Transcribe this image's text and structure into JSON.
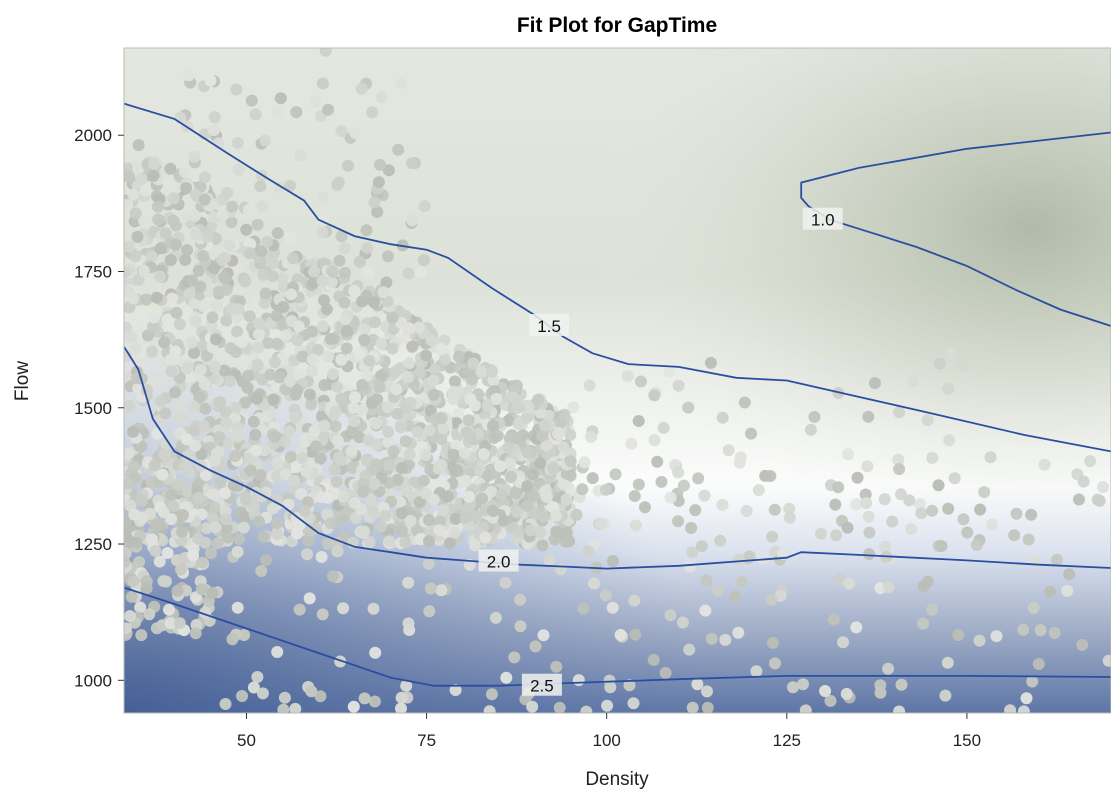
{
  "chart_data": {
    "type": "contour",
    "title": "Fit Plot for GapTime",
    "xlabel": "Density",
    "ylabel": "Flow",
    "xlim": [
      33,
      170
    ],
    "ylim": [
      940,
      2160
    ],
    "x_ticks": [
      50,
      75,
      100,
      125,
      150
    ],
    "y_ticks": [
      1000,
      1250,
      1500,
      1750,
      2000
    ],
    "x_tick_labels": [
      "50",
      "75",
      "100",
      "125",
      "150"
    ],
    "y_tick_labels": [
      "1000",
      "1250",
      "1500",
      "1750",
      "2000"
    ],
    "grid": false,
    "colors": {
      "contour_line": "#2a4ea0",
      "surface_low_gaptime": "#a9b5a3",
      "surface_mid_gaptime": "#fbfcfc",
      "surface_high_gaptime": "#4e6a9c",
      "marker_light": "#e4e6e2",
      "marker_dark": "#b8bcb4"
    },
    "contours": [
      {
        "level": 1.0,
        "label": "1.0",
        "label_at": [
          130,
          1845
        ],
        "points": [
          [
            170,
            2005
          ],
          [
            150,
            1975
          ],
          [
            135,
            1940
          ],
          [
            127,
            1913
          ],
          [
            127,
            1885
          ],
          [
            128,
            1870
          ],
          [
            131,
            1845
          ],
          [
            137,
            1820
          ],
          [
            143,
            1795
          ],
          [
            150,
            1760
          ],
          [
            157,
            1715
          ],
          [
            163,
            1680
          ],
          [
            170,
            1650
          ]
        ]
      },
      {
        "level": 1.5,
        "label": "1.5",
        "label_at": [
          92,
          1650
        ],
        "points": [
          [
            33,
            2058
          ],
          [
            40,
            2030
          ],
          [
            47,
            1970
          ],
          [
            53,
            1920
          ],
          [
            58,
            1880
          ],
          [
            60,
            1845
          ],
          [
            65,
            1815
          ],
          [
            70,
            1800
          ],
          [
            75,
            1790
          ],
          [
            78,
            1775
          ],
          [
            84,
            1720
          ],
          [
            90,
            1670
          ],
          [
            94,
            1630
          ],
          [
            98,
            1600
          ],
          [
            103,
            1580
          ],
          [
            110,
            1575
          ],
          [
            118,
            1555
          ],
          [
            125,
            1550
          ],
          [
            135,
            1520
          ],
          [
            145,
            1490
          ],
          [
            158,
            1450
          ],
          [
            170,
            1420
          ]
        ]
      },
      {
        "level": 2.0,
        "label": "2.0",
        "label_at": [
          85,
          1218
        ],
        "points": [
          [
            33,
            1612
          ],
          [
            35,
            1570
          ],
          [
            37,
            1480
          ],
          [
            40,
            1420
          ],
          [
            45,
            1385
          ],
          [
            50,
            1355
          ],
          [
            55,
            1320
          ],
          [
            60,
            1270
          ],
          [
            65,
            1245
          ],
          [
            70,
            1235
          ],
          [
            75,
            1225
          ],
          [
            80,
            1220
          ],
          [
            88,
            1212
          ],
          [
            95,
            1208
          ],
          [
            100,
            1205
          ],
          [
            110,
            1210
          ],
          [
            120,
            1220
          ],
          [
            125,
            1225
          ],
          [
            127,
            1235
          ],
          [
            135,
            1230
          ],
          [
            150,
            1220
          ],
          [
            160,
            1212
          ],
          [
            170,
            1206
          ]
        ]
      },
      {
        "level": 2.5,
        "label": "2.5",
        "label_at": [
          91,
          990
        ],
        "points": [
          [
            33,
            1170
          ],
          [
            40,
            1140
          ],
          [
            50,
            1095
          ],
          [
            60,
            1050
          ],
          [
            70,
            1005
          ],
          [
            76,
            990
          ],
          [
            85,
            990
          ],
          [
            95,
            995
          ],
          [
            110,
            1002
          ],
          [
            125,
            1008
          ],
          [
            135,
            1008
          ],
          [
            150,
            1008
          ],
          [
            170,
            1006
          ]
        ]
      }
    ],
    "scatter": {
      "name": "",
      "clusters": [
        {
          "x_range": [
            33,
            95
          ],
          "y_range": [
            1250,
            2000
          ],
          "count": 1800,
          "shade": "light"
        },
        {
          "x_range": [
            40,
            75
          ],
          "y_range": [
            1650,
            2100
          ],
          "count": 120,
          "shade": "light"
        },
        {
          "x_range": [
            33,
            45
          ],
          "y_range": [
            1080,
            1400
          ],
          "count": 160,
          "shade": "light"
        },
        {
          "x_range": [
            45,
            170
          ],
          "y_range": [
            940,
            1420
          ],
          "count": 260,
          "shade": "light"
        },
        {
          "x_range": [
            90,
            150
          ],
          "y_range": [
            1250,
            1600
          ],
          "count": 60,
          "shade": "light"
        }
      ],
      "extra_points": [
        [
          61,
          2155
        ],
        [
          66,
          2085
        ],
        [
          42,
          2110
        ],
        [
          45,
          2100
        ],
        [
          59,
          980
        ],
        [
          122,
          1375
        ],
        [
          142,
          1330
        ],
        [
          93,
          1025
        ],
        [
          156,
          945
        ],
        [
          166,
          1065
        ],
        [
          136,
          1325
        ]
      ]
    }
  }
}
